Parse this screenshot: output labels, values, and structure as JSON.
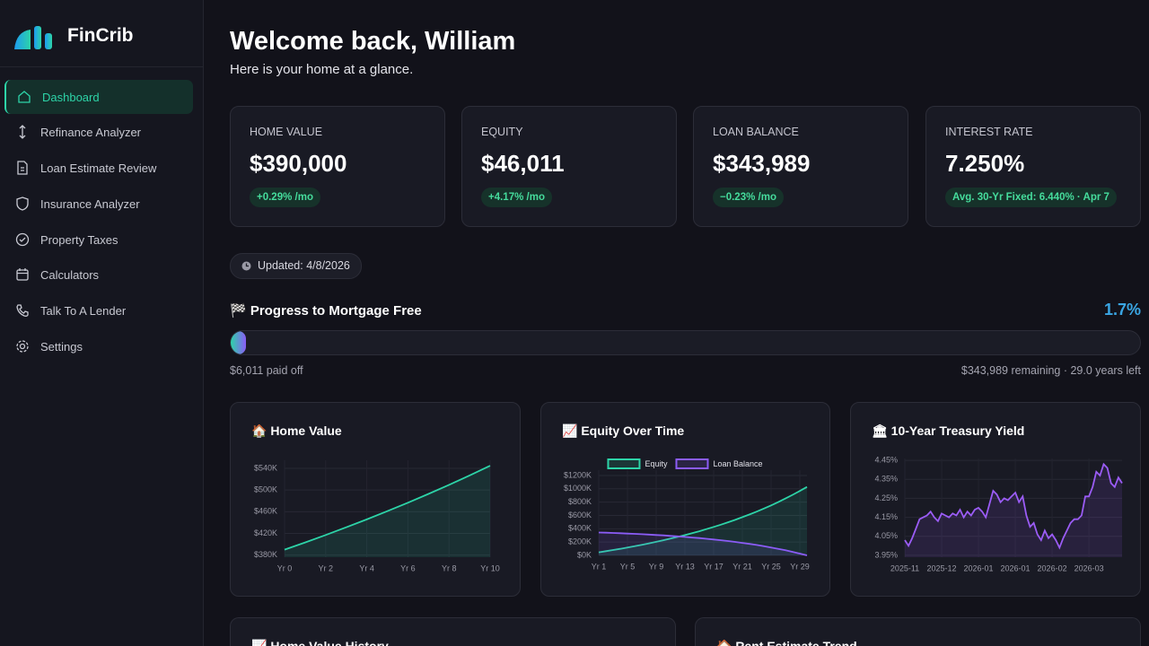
{
  "sidebar": {
    "brand": "FinCrib",
    "nav": [
      "Dashboard",
      "Refinance Analyzer",
      "Loan Estimate Review",
      "Insurance Analyzer",
      "Property Taxes",
      "Calculators",
      "Talk To A Lender",
      "Settings"
    ]
  },
  "header": {
    "title": "Welcome back, William",
    "subtitle": "Here is your home at a glance."
  },
  "stats": [
    {
      "label": "HOME VALUE",
      "value": "$390,000",
      "change": "+0.29% /mo"
    },
    {
      "label": "EQUITY",
      "value": "$46,011",
      "change": "+4.17% /mo"
    },
    {
      "label": "LOAN BALANCE",
      "value": "$343,989",
      "change": "−0.23% /mo"
    },
    {
      "label": "INTEREST RATE",
      "value": "7.250%",
      "change": "Avg. 30-Yr Fixed: 6.440% · Apr 7"
    }
  ],
  "updated": "Updated: 4/8/2026",
  "progress": {
    "title": "🏁 Progress to Mortgage Free",
    "percent": 1.7,
    "percent_label": "1.7%",
    "paid": "$6,011 paid off",
    "remaining": "$343,989 remaining · 29.0 years left"
  },
  "chart_data": [
    {
      "type": "line",
      "title": "🏠 Home Value",
      "fill": true,
      "color": "#2dd4a8",
      "grid": true,
      "categories": [
        "Yr 0",
        null,
        "Yr 2",
        null,
        "Yr 4",
        null,
        "Yr 6",
        null,
        "Yr 8",
        null,
        "Yr 10"
      ],
      "values": [
        390000,
        403260,
        416970,
        431150,
        445810,
        460970,
        476640,
        492850,
        509610,
        526940,
        544860
      ],
      "ylim": [
        376000,
        555000
      ],
      "yticks": [
        {
          "value": 380000,
          "label": "$380K"
        },
        {
          "value": 420000,
          "label": "$420K"
        },
        {
          "value": 460000,
          "label": "$460K"
        },
        {
          "value": 500000,
          "label": "$500K"
        },
        {
          "value": 540000,
          "label": "$540K"
        }
      ]
    },
    {
      "type": "line",
      "title": "📈 Equity Over Time",
      "fill": true,
      "grid": true,
      "legend": "top",
      "categories": [
        "Yr 1",
        null,
        null,
        null,
        "Yr 5",
        null,
        null,
        null,
        "Yr 9",
        null,
        null,
        null,
        "Yr 13",
        null,
        null,
        null,
        "Yr 17",
        null,
        null,
        null,
        "Yr 21",
        null,
        null,
        null,
        "Yr 25",
        null,
        null,
        null,
        "Yr 29",
        null
      ],
      "series": [
        {
          "name": "Equity",
          "color": "#2dd4a8",
          "values": [
            46000,
            62900,
            80500,
            98800,
            118000,
            137900,
            158800,
            180600,
            203300,
            227100,
            251900,
            277900,
            305000,
            333400,
            363100,
            394300,
            426900,
            461000,
            496700,
            534200,
            573500,
            614700,
            657900,
            703400,
            751000,
            801000,
            853700,
            908900,
            967100,
            1028100
          ]
        },
        {
          "name": "Loan Balance",
          "color": "#8b5cf6",
          "values": [
            344000,
            340400,
            336500,
            332300,
            327800,
            323000,
            317800,
            312200,
            306200,
            299800,
            292900,
            285400,
            277400,
            268800,
            259600,
            249600,
            238900,
            227400,
            215100,
            201800,
            187500,
            172200,
            155700,
            137900,
            118900,
            98400,
            76300,
            52700,
            27200,
            0
          ]
        }
      ],
      "ylim": [
        0,
        1280000
      ],
      "yticks": [
        {
          "value": 0,
          "label": "$0K"
        },
        {
          "value": 200000,
          "label": "$200K"
        },
        {
          "value": 400000,
          "label": "$400K"
        },
        {
          "value": 600000,
          "label": "$600K"
        },
        {
          "value": 800000,
          "label": "$800K"
        },
        {
          "value": 1000000,
          "label": "$1000K"
        },
        {
          "value": 1200000,
          "label": "$1200K"
        }
      ]
    },
    {
      "type": "line",
      "title": "🏛 10-Year Treasury Yield",
      "fill": true,
      "color": "#9b5cf6",
      "grid": true,
      "categories": [
        "2025-11",
        null,
        null,
        null,
        null,
        null,
        null,
        null,
        null,
        null,
        "2025-12",
        null,
        null,
        null,
        null,
        null,
        null,
        null,
        null,
        null,
        "2026-01",
        null,
        null,
        null,
        null,
        null,
        null,
        null,
        null,
        null,
        "2026-01",
        null,
        null,
        null,
        null,
        null,
        null,
        null,
        null,
        null,
        "2026-02",
        null,
        null,
        null,
        null,
        null,
        null,
        null,
        null,
        null,
        "2026-03",
        null,
        null,
        null,
        null,
        null,
        null,
        null,
        null,
        null
      ],
      "values": [
        4.03,
        4.0,
        4.04,
        4.09,
        4.14,
        4.15,
        4.16,
        4.18,
        4.15,
        4.13,
        4.17,
        4.16,
        4.15,
        4.17,
        4.16,
        4.19,
        4.15,
        4.18,
        4.16,
        4.19,
        4.2,
        4.18,
        4.15,
        4.22,
        4.29,
        4.27,
        4.23,
        4.25,
        4.24,
        4.26,
        4.28,
        4.23,
        4.26,
        4.16,
        4.1,
        4.12,
        4.06,
        4.03,
        4.08,
        4.04,
        4.06,
        4.03,
        3.99,
        4.04,
        4.08,
        4.12,
        4.14,
        4.14,
        4.16,
        4.26,
        4.26,
        4.31,
        4.39,
        4.37,
        4.43,
        4.41,
        4.33,
        4.31,
        4.36,
        4.33
      ],
      "ylim": [
        3.94,
        4.46
      ],
      "yticks": [
        {
          "value": 3.95,
          "label": "3.95%"
        },
        {
          "value": 4.05,
          "label": "4.05%"
        },
        {
          "value": 4.15,
          "label": "4.15%"
        },
        {
          "value": 4.25,
          "label": "4.25%"
        },
        {
          "value": 4.35,
          "label": "4.35%"
        },
        {
          "value": 4.45,
          "label": "4.45%"
        }
      ]
    }
  ],
  "more_cards": [
    {
      "title": "📈 Home Value History"
    },
    {
      "title": "🏠 Rent Estimate Trend"
    }
  ]
}
